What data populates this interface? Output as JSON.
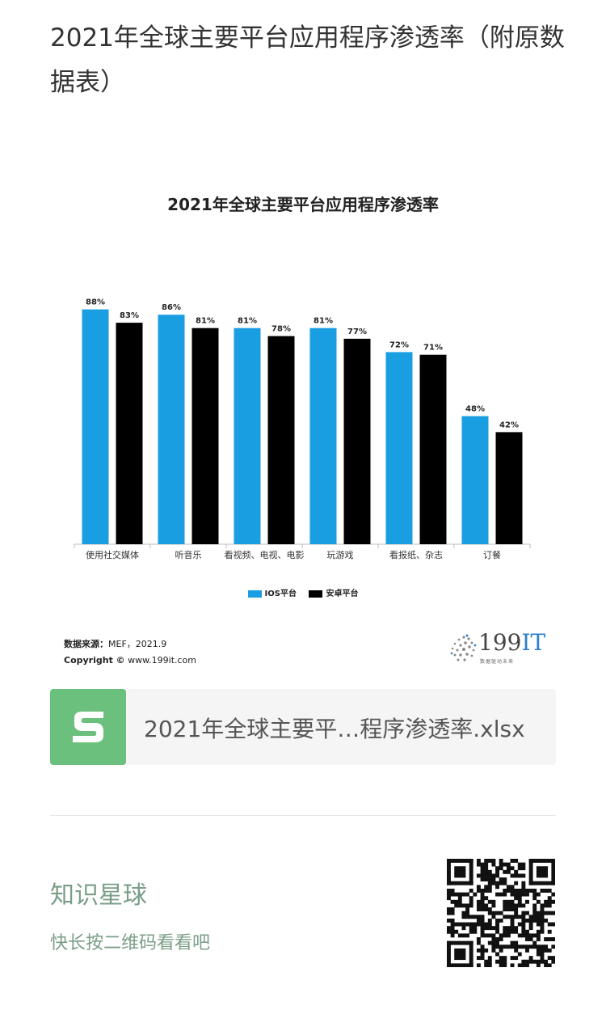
{
  "page": {
    "title": "2021年全球主要平台应用程序渗透率（附原数据表）"
  },
  "chart": {
    "title": "2021年全球主要平台应用程序渗透率",
    "source_label": "数据来源：",
    "source_value": "MEF，2021.9",
    "copyright_label": "Copyright ©",
    "copyright_value": " www.199it.com",
    "logo": {
      "prefix": "199",
      "suffix": "IT",
      "tagline": "数据驱动未来"
    },
    "colors": {
      "ios": "#1a9ee2",
      "android": "#000000"
    }
  },
  "chart_data": {
    "type": "bar",
    "title": "2021年全球主要平台应用程序渗透率",
    "categories": [
      "使用社交媒体",
      "听音乐",
      "看视频、电视、电影",
      "玩游戏",
      "看报纸、杂志",
      "订餐"
    ],
    "series": [
      {
        "name": "IOS平台",
        "values": [
          88,
          86,
          81,
          81,
          72,
          48
        ],
        "labels": [
          "88%",
          "86%",
          "81%",
          "81%",
          "72%",
          "48%"
        ]
      },
      {
        "name": "安卓平台",
        "values": [
          83,
          81,
          78,
          77,
          71,
          42
        ],
        "labels": [
          "83%",
          "81%",
          "78%",
          "77%",
          "71%",
          "42%"
        ]
      }
    ],
    "ylim": [
      0,
      100
    ],
    "grid": false,
    "legend_position": "bottom"
  },
  "file": {
    "icon": "spreadsheet-s-icon",
    "name": "2021年全球主要平…程序渗透率.xlsx"
  },
  "footer": {
    "title": "知识星球",
    "subtitle": "快长按二维码看看吧",
    "qr_icon": "qr-code-icon"
  }
}
